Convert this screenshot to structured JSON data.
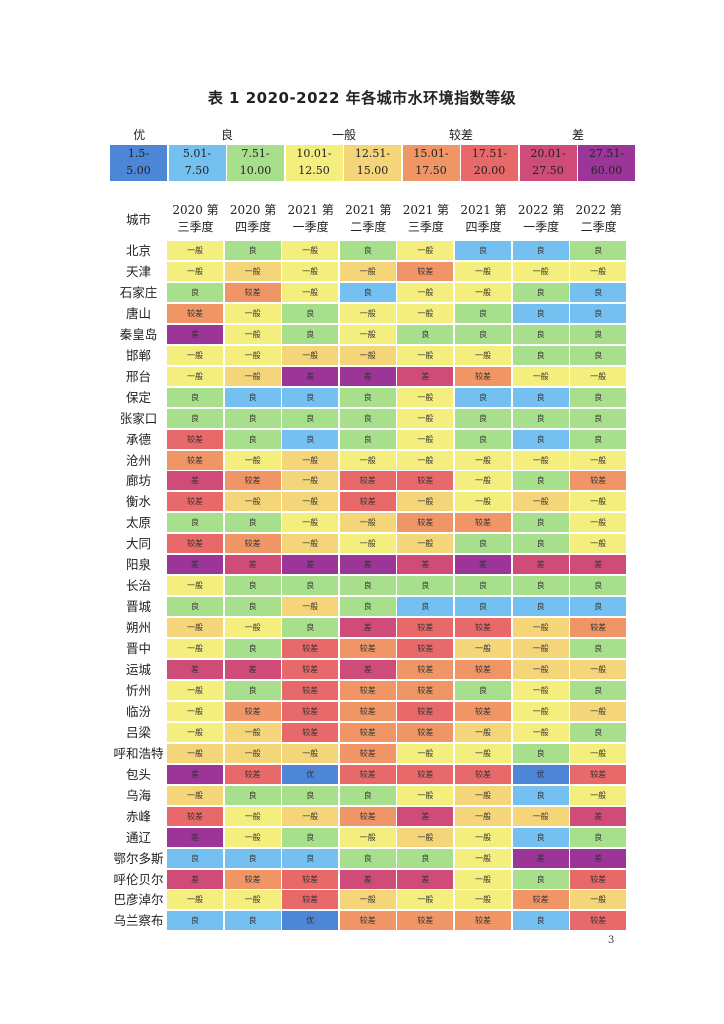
{
  "title": "表 1 2020-2022 年各城市水环境指数等级",
  "colors": {
    "优": "#4d86d6",
    "良l": "#74c0f0",
    "良": "#a8df8c",
    "一般l": "#f3ee7e",
    "一般": "#f5d57a",
    "较差l": "#ef9566",
    "较差": "#e8696a",
    "差l": "#cf4c78",
    "差": "#9b3597"
  },
  "legend": {
    "groups": [
      {
        "label": "优",
        "span": 1
      },
      {
        "label": "良",
        "span": 2
      },
      {
        "label": "一般",
        "span": 2
      },
      {
        "label": "较差",
        "span": 2
      },
      {
        "label": "差",
        "span": 2
      }
    ],
    "cells": [
      {
        "l1": "1.5-",
        "l2": "5.00",
        "color": "#4d86d6"
      },
      {
        "l1": "5.01-",
        "l2": "7.50",
        "color": "#74c0f0"
      },
      {
        "l1": "7.51-",
        "l2": "10.00",
        "color": "#a8df8c"
      },
      {
        "l1": "10.01-",
        "l2": "12.50",
        "color": "#f3ee7e"
      },
      {
        "l1": "12.51-",
        "l2": "15.00",
        "color": "#f5d57a"
      },
      {
        "l1": "15.01-",
        "l2": "17.50",
        "color": "#ef9566"
      },
      {
        "l1": "17.51-",
        "l2": "20.00",
        "color": "#e8696a"
      },
      {
        "l1": "20.01-",
        "l2": "27.50",
        "color": "#cf4c78"
      },
      {
        "l1": "27.51-",
        "l2": "60.00",
        "color": "#9b3597"
      }
    ]
  },
  "header": {
    "city": "城市",
    "quarters": [
      {
        "l1": "2020 第",
        "l2": "三季度"
      },
      {
        "l1": "2020 第",
        "l2": "四季度"
      },
      {
        "l1": "2021 第",
        "l2": "一季度"
      },
      {
        "l1": "2021 第",
        "l2": "二季度"
      },
      {
        "l1": "2021 第",
        "l2": "三季度"
      },
      {
        "l1": "2021 第",
        "l2": "四季度"
      },
      {
        "l1": "2022 第",
        "l2": "一季度"
      },
      {
        "l1": "2022 第",
        "l2": "二季度"
      }
    ]
  },
  "rows": [
    {
      "city": "北京",
      "cells": [
        [
          "一般",
          "一般l"
        ],
        [
          "良",
          "良"
        ],
        [
          "一般",
          "一般l"
        ],
        [
          "良",
          "良"
        ],
        [
          "一般",
          "一般l"
        ],
        [
          "良",
          "良l"
        ],
        [
          "良",
          "良l"
        ],
        [
          "良",
          "良"
        ]
      ]
    },
    {
      "city": "天津",
      "cells": [
        [
          "一般",
          "一般l"
        ],
        [
          "一般",
          "一般"
        ],
        [
          "一般",
          "一般l"
        ],
        [
          "一般",
          "一般"
        ],
        [
          "较差",
          "较差l"
        ],
        [
          "一般",
          "一般l"
        ],
        [
          "一般",
          "一般l"
        ],
        [
          "一般",
          "一般l"
        ]
      ]
    },
    {
      "city": "石家庄",
      "cells": [
        [
          "良",
          "良"
        ],
        [
          "较差",
          "较差l"
        ],
        [
          "一般",
          "一般l"
        ],
        [
          "良",
          "良l"
        ],
        [
          "一般",
          "一般l"
        ],
        [
          "一般",
          "一般l"
        ],
        [
          "良",
          "良"
        ],
        [
          "良",
          "良l"
        ]
      ]
    },
    {
      "city": "唐山",
      "cells": [
        [
          "较差",
          "较差l"
        ],
        [
          "一般",
          "一般l"
        ],
        [
          "良",
          "良"
        ],
        [
          "一般",
          "一般l"
        ],
        [
          "一般",
          "一般l"
        ],
        [
          "良",
          "良"
        ],
        [
          "良",
          "良l"
        ],
        [
          "良",
          "良l"
        ]
      ]
    },
    {
      "city": "秦皇岛",
      "cells": [
        [
          "差",
          "差"
        ],
        [
          "一般",
          "一般l"
        ],
        [
          "良",
          "良"
        ],
        [
          "一般",
          "一般l"
        ],
        [
          "良",
          "良"
        ],
        [
          "良",
          "良"
        ],
        [
          "良",
          "良"
        ],
        [
          "良",
          "良"
        ]
      ]
    },
    {
      "city": "邯郸",
      "cells": [
        [
          "一般",
          "一般l"
        ],
        [
          "一般",
          "一般l"
        ],
        [
          "一般",
          "一般"
        ],
        [
          "一般",
          "一般"
        ],
        [
          "一般",
          "一般l"
        ],
        [
          "一般",
          "一般l"
        ],
        [
          "良",
          "良"
        ],
        [
          "良",
          "良"
        ]
      ]
    },
    {
      "city": "邢台",
      "cells": [
        [
          "一般",
          "一般l"
        ],
        [
          "一般",
          "一般"
        ],
        [
          "差",
          "差"
        ],
        [
          "差",
          "差"
        ],
        [
          "差",
          "差l"
        ],
        [
          "较差",
          "较差l"
        ],
        [
          "一般",
          "一般l"
        ],
        [
          "一般",
          "一般l"
        ]
      ]
    },
    {
      "city": "保定",
      "cells": [
        [
          "良",
          "良"
        ],
        [
          "良",
          "良l"
        ],
        [
          "良",
          "良l"
        ],
        [
          "良",
          "良"
        ],
        [
          "一般",
          "一般l"
        ],
        [
          "良",
          "良l"
        ],
        [
          "良",
          "良l"
        ],
        [
          "良",
          "良"
        ]
      ]
    },
    {
      "city": "张家口",
      "cells": [
        [
          "良",
          "良"
        ],
        [
          "良",
          "良"
        ],
        [
          "良",
          "良"
        ],
        [
          "良",
          "良"
        ],
        [
          "一般",
          "一般l"
        ],
        [
          "良",
          "良"
        ],
        [
          "良",
          "良"
        ],
        [
          "良",
          "良"
        ]
      ]
    },
    {
      "city": "承德",
      "cells": [
        [
          "较差",
          "较差"
        ],
        [
          "良",
          "良"
        ],
        [
          "良",
          "良l"
        ],
        [
          "良",
          "良"
        ],
        [
          "一般",
          "一般l"
        ],
        [
          "良",
          "良"
        ],
        [
          "良",
          "良l"
        ],
        [
          "良",
          "良"
        ]
      ]
    },
    {
      "city": "沧州",
      "cells": [
        [
          "较差",
          "较差l"
        ],
        [
          "一般",
          "一般l"
        ],
        [
          "一般",
          "一般"
        ],
        [
          "一般",
          "一般l"
        ],
        [
          "一般",
          "一般l"
        ],
        [
          "一般",
          "一般l"
        ],
        [
          "一般",
          "一般l"
        ],
        [
          "一般",
          "一般l"
        ]
      ]
    },
    {
      "city": "廊坊",
      "cells": [
        [
          "差",
          "差l"
        ],
        [
          "较差",
          "较差l"
        ],
        [
          "一般",
          "一般"
        ],
        [
          "较差",
          "较差"
        ],
        [
          "较差",
          "较差"
        ],
        [
          "一般",
          "一般l"
        ],
        [
          "良",
          "良"
        ],
        [
          "较差",
          "较差l"
        ]
      ]
    },
    {
      "city": "衡水",
      "cells": [
        [
          "较差",
          "较差"
        ],
        [
          "一般",
          "一般"
        ],
        [
          "一般",
          "一般"
        ],
        [
          "较差",
          "较差"
        ],
        [
          "一般",
          "一般"
        ],
        [
          "一般",
          "一般l"
        ],
        [
          "一般",
          "一般"
        ],
        [
          "一般",
          "一般l"
        ]
      ]
    },
    {
      "city": "太原",
      "cells": [
        [
          "良",
          "良"
        ],
        [
          "良",
          "良"
        ],
        [
          "一般",
          "一般l"
        ],
        [
          "一般",
          "一般"
        ],
        [
          "较差",
          "较差l"
        ],
        [
          "较差",
          "较差l"
        ],
        [
          "良",
          "良"
        ],
        [
          "一般",
          "一般l"
        ]
      ]
    },
    {
      "city": "大同",
      "cells": [
        [
          "较差",
          "较差"
        ],
        [
          "较差",
          "较差l"
        ],
        [
          "一般",
          "一般"
        ],
        [
          "一般",
          "一般l"
        ],
        [
          "一般",
          "一般"
        ],
        [
          "良",
          "良"
        ],
        [
          "良",
          "良"
        ],
        [
          "一般",
          "一般l"
        ]
      ]
    },
    {
      "city": "阳泉",
      "cells": [
        [
          "差",
          "差"
        ],
        [
          "差",
          "差l"
        ],
        [
          "差",
          "差"
        ],
        [
          "差",
          "差"
        ],
        [
          "差",
          "差l"
        ],
        [
          "差",
          "差"
        ],
        [
          "差",
          "差l"
        ],
        [
          "差",
          "差l"
        ]
      ]
    },
    {
      "city": "长治",
      "cells": [
        [
          "一般",
          "一般l"
        ],
        [
          "良",
          "良"
        ],
        [
          "良",
          "良"
        ],
        [
          "良",
          "良"
        ],
        [
          "良",
          "良"
        ],
        [
          "良",
          "良"
        ],
        [
          "良",
          "良"
        ],
        [
          "良",
          "良"
        ]
      ]
    },
    {
      "city": "晋城",
      "cells": [
        [
          "良",
          "良"
        ],
        [
          "良",
          "良"
        ],
        [
          "一般",
          "一般"
        ],
        [
          "良",
          "良"
        ],
        [
          "良",
          "良l"
        ],
        [
          "良",
          "良l"
        ],
        [
          "良",
          "良l"
        ],
        [
          "良",
          "良l"
        ]
      ]
    },
    {
      "city": "朔州",
      "cells": [
        [
          "一般",
          "一般"
        ],
        [
          "一般",
          "一般l"
        ],
        [
          "良",
          "良"
        ],
        [
          "差",
          "差l"
        ],
        [
          "较差",
          "较差"
        ],
        [
          "较差",
          "较差"
        ],
        [
          "一般",
          "一般"
        ],
        [
          "较差",
          "较差l"
        ]
      ]
    },
    {
      "city": "晋中",
      "cells": [
        [
          "一般",
          "一般l"
        ],
        [
          "良",
          "良"
        ],
        [
          "较差",
          "较差"
        ],
        [
          "较差",
          "较差l"
        ],
        [
          "较差",
          "较差"
        ],
        [
          "一般",
          "一般"
        ],
        [
          "一般",
          "一般"
        ],
        [
          "良",
          "良"
        ]
      ]
    },
    {
      "city": "运城",
      "cells": [
        [
          "差",
          "差l"
        ],
        [
          "差",
          "差l"
        ],
        [
          "较差",
          "较差"
        ],
        [
          "差",
          "差l"
        ],
        [
          "较差",
          "较差l"
        ],
        [
          "较差",
          "较差l"
        ],
        [
          "一般",
          "一般"
        ],
        [
          "一般",
          "一般"
        ]
      ]
    },
    {
      "city": "忻州",
      "cells": [
        [
          "一般",
          "一般l"
        ],
        [
          "良",
          "良"
        ],
        [
          "较差",
          "较差"
        ],
        [
          "较差",
          "较差l"
        ],
        [
          "较差",
          "较差l"
        ],
        [
          "良",
          "良"
        ],
        [
          "一般",
          "一般l"
        ],
        [
          "良",
          "良"
        ]
      ]
    },
    {
      "city": "临汾",
      "cells": [
        [
          "一般",
          "一般l"
        ],
        [
          "较差",
          "较差l"
        ],
        [
          "较差",
          "较差"
        ],
        [
          "较差",
          "较差l"
        ],
        [
          "较差",
          "较差"
        ],
        [
          "较差",
          "较差l"
        ],
        [
          "一般",
          "一般l"
        ],
        [
          "一般",
          "一般"
        ]
      ]
    },
    {
      "city": "吕梁",
      "cells": [
        [
          "一般",
          "一般l"
        ],
        [
          "一般",
          "一般"
        ],
        [
          "较差",
          "较差"
        ],
        [
          "较差",
          "较差l"
        ],
        [
          "较差",
          "较差l"
        ],
        [
          "一般",
          "一般"
        ],
        [
          "一般",
          "一般l"
        ],
        [
          "良",
          "良"
        ]
      ]
    },
    {
      "city": "呼和浩特",
      "cells": [
        [
          "一般",
          "一般"
        ],
        [
          "一般",
          "一般"
        ],
        [
          "一般",
          "一般"
        ],
        [
          "较差",
          "较差l"
        ],
        [
          "一般",
          "一般l"
        ],
        [
          "一般",
          "一般l"
        ],
        [
          "良",
          "良"
        ],
        [
          "一般",
          "一般l"
        ]
      ]
    },
    {
      "city": "包头",
      "cells": [
        [
          "差",
          "差"
        ],
        [
          "较差",
          "较差"
        ],
        [
          "优",
          "优"
        ],
        [
          "较差",
          "较差"
        ],
        [
          "较差",
          "较差"
        ],
        [
          "较差",
          "较差"
        ],
        [
          "优",
          "优"
        ],
        [
          "较差",
          "较差"
        ]
      ]
    },
    {
      "city": "乌海",
      "cells": [
        [
          "一般",
          "一般"
        ],
        [
          "良",
          "良"
        ],
        [
          "良",
          "良"
        ],
        [
          "良",
          "良"
        ],
        [
          "一般",
          "一般l"
        ],
        [
          "一般",
          "一般"
        ],
        [
          "良",
          "良l"
        ],
        [
          "一般",
          "一般l"
        ]
      ]
    },
    {
      "city": "赤峰",
      "cells": [
        [
          "较差",
          "较差"
        ],
        [
          "一般",
          "一般l"
        ],
        [
          "一般",
          "一般"
        ],
        [
          "较差",
          "较差l"
        ],
        [
          "差",
          "差l"
        ],
        [
          "一般",
          "一般"
        ],
        [
          "一般",
          "一般"
        ],
        [
          "差",
          "差l"
        ]
      ]
    },
    {
      "city": "通辽",
      "cells": [
        [
          "差",
          "差"
        ],
        [
          "一般",
          "一般l"
        ],
        [
          "良",
          "良"
        ],
        [
          "一般",
          "一般l"
        ],
        [
          "一般",
          "一般"
        ],
        [
          "一般",
          "一般l"
        ],
        [
          "良",
          "良l"
        ],
        [
          "良",
          "良"
        ]
      ]
    },
    {
      "city": "鄂尔多斯",
      "cells": [
        [
          "良",
          "良l"
        ],
        [
          "良",
          "良l"
        ],
        [
          "良",
          "良l"
        ],
        [
          "良",
          "良"
        ],
        [
          "良",
          "良"
        ],
        [
          "一般",
          "一般l"
        ],
        [
          "差",
          "差"
        ],
        [
          "差",
          "差"
        ]
      ]
    },
    {
      "city": "呼伦贝尔",
      "cells": [
        [
          "差",
          "差l"
        ],
        [
          "较差",
          "较差l"
        ],
        [
          "较差",
          "较差"
        ],
        [
          "差",
          "差l"
        ],
        [
          "差",
          "差l"
        ],
        [
          "一般",
          "一般l"
        ],
        [
          "良",
          "良"
        ],
        [
          "较差",
          "较差"
        ]
      ]
    },
    {
      "city": "巴彦淖尔",
      "cells": [
        [
          "一般",
          "一般l"
        ],
        [
          "一般",
          "一般l"
        ],
        [
          "较差",
          "较差"
        ],
        [
          "一般",
          "一般"
        ],
        [
          "一般",
          "一般l"
        ],
        [
          "一般",
          "一般l"
        ],
        [
          "较差",
          "较差l"
        ],
        [
          "一般",
          "一般"
        ]
      ]
    },
    {
      "city": "乌兰察布",
      "cells": [
        [
          "良",
          "良l"
        ],
        [
          "良",
          "良l"
        ],
        [
          "优",
          "优"
        ],
        [
          "较差",
          "较差l"
        ],
        [
          "较差",
          "较差l"
        ],
        [
          "较差",
          "较差l"
        ],
        [
          "良",
          "良l"
        ],
        [
          "较差",
          "较差"
        ]
      ]
    }
  ],
  "page_number": "3"
}
